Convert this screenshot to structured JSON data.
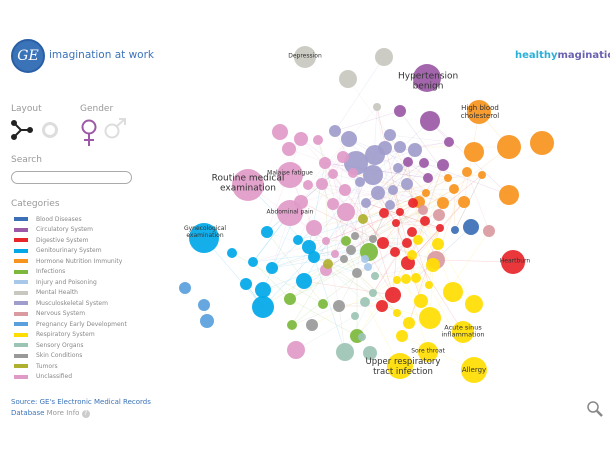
{
  "header": {
    "logo_text": "GE",
    "tagline": "imagination at work",
    "brand_a": "healthy",
    "brand_b": "magination"
  },
  "sidebar": {
    "layout_label": "Layout",
    "gender_label": "Gender",
    "search_label": "Search",
    "search_placeholder": "",
    "categories_label": "Categories",
    "categories": [
      {
        "label": "Blood Diseases",
        "color": "#3b6fb6"
      },
      {
        "label": "Circulatory System",
        "color": "#9b59a6"
      },
      {
        "label": "Digestive System",
        "color": "#e8262a"
      },
      {
        "label": "Genitourinary System",
        "color": "#00a8e8"
      },
      {
        "label": "Hormone Nutrition Immunity",
        "color": "#f7941d"
      },
      {
        "label": "Infections",
        "color": "#7cb83c"
      },
      {
        "label": "Injury and Poisoning",
        "color": "#a8c8ea"
      },
      {
        "label": "Mental Health",
        "color": "#c8c8c0"
      },
      {
        "label": "Musculoskeletal System",
        "color": "#a09ccc"
      },
      {
        "label": "Nervous System",
        "color": "#d99aa0"
      },
      {
        "label": "Pregnancy  Early Development",
        "color": "#5aa0dc"
      },
      {
        "label": "Respiratory System",
        "color": "#ffdd00"
      },
      {
        "label": "Sensory Organs",
        "color": "#9cc4b4"
      },
      {
        "label": "Skin Conditions",
        "color": "#999999"
      },
      {
        "label": "Tumors",
        "color": "#b0b030"
      },
      {
        "label": "Unclassified",
        "color": "#e09ac8"
      }
    ],
    "source": "Source: GE's Electronic Medical Records Database",
    "more_info": "More Info",
    "help": "?"
  },
  "network": {
    "labels": {
      "depression": "Depression",
      "hypertension": "Hypertension benign",
      "cholesterol": "High blood cholesterol",
      "routine": "Routine medical examination",
      "malaise": "Malaise fatigue",
      "abdominal": "Abdominal pain",
      "gyneco": "Gynecological examination",
      "heartburn": "Heartburn",
      "acute": "Acute sinus inflammation",
      "sore": "Sore throat",
      "upper": "Upper respiratory tract infection",
      "allergy": "Allergy"
    }
  },
  "selected_gender": "female",
  "selected_layout": "network"
}
